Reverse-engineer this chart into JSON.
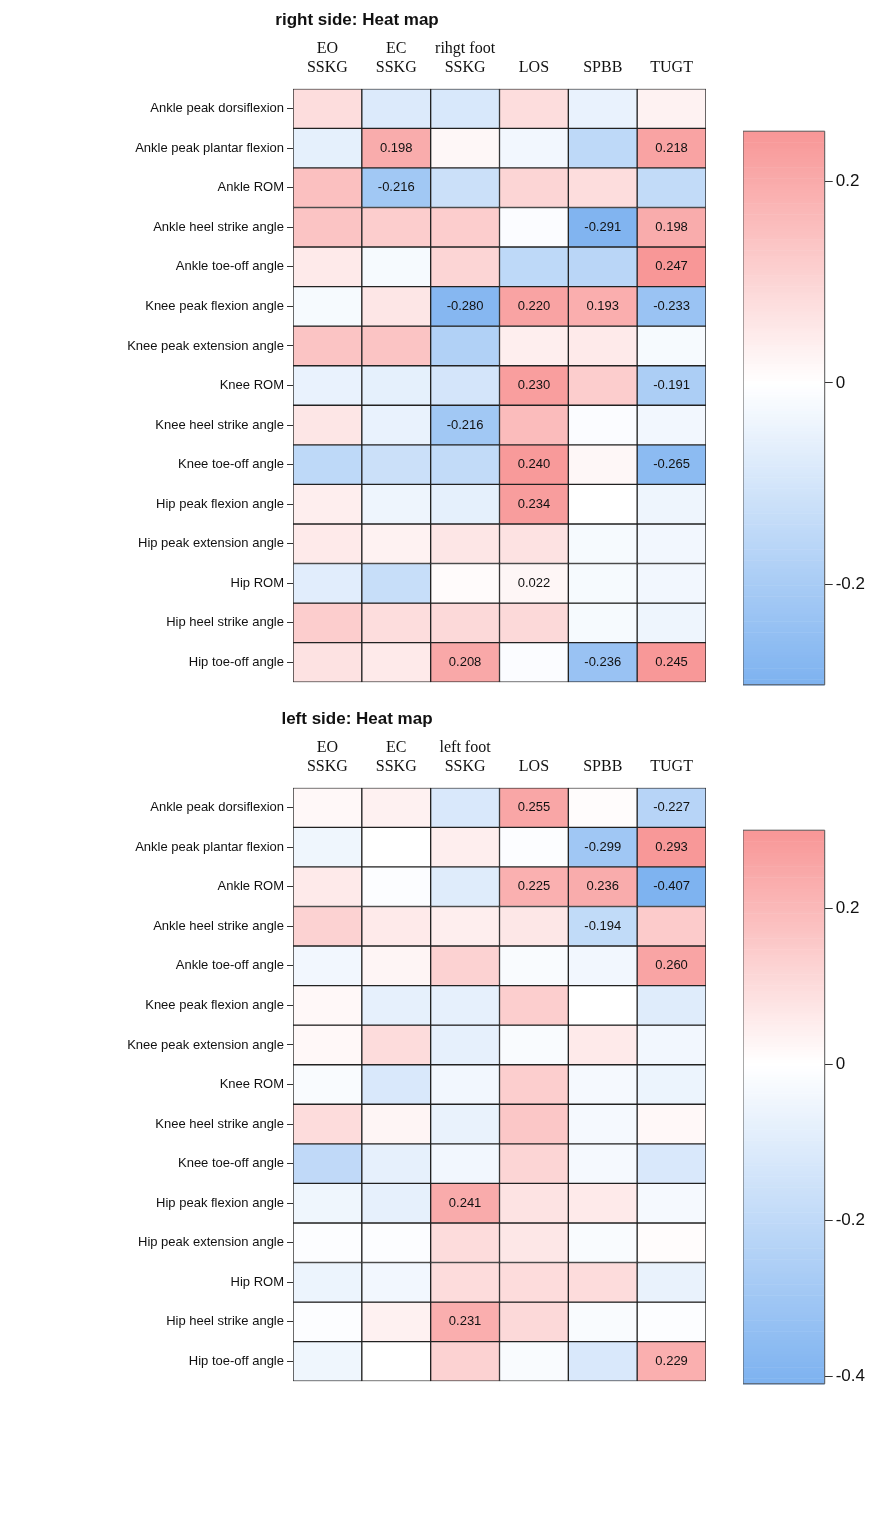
{
  "chart_data": [
    {
      "type": "heatmap",
      "title": "right side: Heat map",
      "categories": [
        [
          "EO",
          "SSKG"
        ],
        [
          "EC",
          "SSKG"
        ],
        [
          "rihgt foot",
          "SSKG"
        ],
        [
          "LOS"
        ],
        [
          "SPBB"
        ],
        [
          "TUGT"
        ]
      ],
      "y_categories": [
        "Ankle peak dorsiflexion",
        "Ankle peak plantar flexion",
        "Ankle ROM",
        "Ankle heel strike angle",
        "Ankle toe-off angle",
        "Knee peak flexion angle",
        "Knee peak extension angle",
        "Knee ROM",
        "Knee heel strike angle",
        "Knee toe-off angle",
        "Hip peak flexion angle",
        "Hip peak extension angle",
        "Hip ROM",
        "Hip heel strike angle",
        "Hip toe-off angle"
      ],
      "cells": [
        [
          0.08,
          -0.08,
          -0.09,
          0.08,
          -0.05,
          0.03
        ],
        [
          -0.06,
          0.198,
          0.02,
          -0.03,
          -0.15,
          0.218
        ],
        [
          0.15,
          -0.216,
          -0.12,
          0.1,
          0.08,
          -0.14
        ],
        [
          0.14,
          0.12,
          0.12,
          -0.01,
          -0.291,
          0.198
        ],
        [
          0.05,
          -0.02,
          0.1,
          -0.15,
          -0.16,
          0.247
        ],
        [
          -0.02,
          0.06,
          -0.28,
          0.22,
          0.193,
          -0.233
        ],
        [
          0.14,
          0.14,
          -0.18,
          0.04,
          0.05,
          -0.02
        ],
        [
          -0.05,
          -0.06,
          -0.1,
          0.23,
          0.12,
          -0.191
        ],
        [
          0.06,
          -0.05,
          -0.216,
          0.16,
          -0.01,
          -0.03
        ],
        [
          -0.15,
          -0.12,
          -0.14,
          0.24,
          0.02,
          -0.265
        ],
        [
          0.04,
          -0.04,
          -0.06,
          0.234,
          0,
          -0.04
        ],
        [
          0.05,
          0.03,
          0.06,
          0.07,
          -0.02,
          -0.03
        ],
        [
          -0.07,
          -0.13,
          0.01,
          0.022,
          -0.02,
          -0.03
        ],
        [
          0.12,
          0.08,
          0.09,
          0.09,
          -0.02,
          -0.04
        ],
        [
          0.07,
          0.05,
          0.208,
          -0.01,
          -0.236,
          0.245
        ]
      ],
      "cell_labels": [
        [
          null,
          null,
          null,
          null,
          null,
          null
        ],
        [
          null,
          "0.198",
          null,
          null,
          null,
          "0.218"
        ],
        [
          null,
          "-0.216",
          null,
          null,
          null,
          null
        ],
        [
          null,
          null,
          null,
          null,
          "-0.291",
          "0.198"
        ],
        [
          null,
          null,
          null,
          null,
          null,
          "0.247"
        ],
        [
          null,
          null,
          "-0.280",
          "0.220",
          "0.193",
          "-0.233"
        ],
        [
          null,
          null,
          null,
          null,
          null,
          null
        ],
        [
          null,
          null,
          null,
          "0.230",
          null,
          "-0.191"
        ],
        [
          null,
          null,
          "-0.216",
          null,
          null,
          null
        ],
        [
          null,
          null,
          null,
          "0.240",
          null,
          "-0.265"
        ],
        [
          null,
          null,
          null,
          "0.234",
          null,
          null
        ],
        [
          null,
          null,
          null,
          null,
          null,
          null
        ],
        [
          null,
          null,
          null,
          "0.022",
          null,
          null
        ],
        [
          null,
          null,
          null,
          null,
          null,
          null
        ],
        [
          null,
          null,
          "0.208",
          null,
          "-0.236",
          "0.245"
        ]
      ],
      "clim": [
        -0.3,
        0.25
      ],
      "cticks": [
        -0.2,
        0,
        0.2
      ]
    },
    {
      "type": "heatmap",
      "title": "left side: Heat map",
      "categories": [
        [
          "EO",
          "SSKG"
        ],
        [
          "EC",
          "SSKG"
        ],
        [
          "left foot",
          "SSKG"
        ],
        [
          "LOS"
        ],
        [
          "SPBB"
        ],
        [
          "TUGT"
        ]
      ],
      "y_categories": [
        "Ankle peak dorsiflexion",
        "Ankle peak plantar flexion",
        "Ankle ROM",
        "Ankle heel strike angle",
        "Ankle toe-off angle",
        "Knee peak flexion angle",
        "Knee peak extension angle",
        "Knee ROM",
        "Knee heel strike angle",
        "Knee toe-off angle",
        "Hip peak flexion angle",
        "Hip peak extension angle",
        "Hip ROM",
        "Hip heel strike angle",
        "Hip toe-off angle"
      ],
      "cells": [
        [
          0.02,
          0.04,
          -0.12,
          0.255,
          0.01,
          -0.227
        ],
        [
          -0.05,
          0,
          0.05,
          -0.01,
          -0.299,
          0.293
        ],
        [
          0.06,
          -0.01,
          -0.1,
          0.225,
          0.236,
          -0.407
        ],
        [
          0.13,
          0.06,
          0.05,
          0.07,
          -0.194,
          0.15
        ],
        [
          -0.04,
          0.03,
          0.13,
          -0.02,
          -0.04,
          0.26
        ],
        [
          0.02,
          -0.08,
          -0.08,
          0.14,
          0,
          -0.1
        ],
        [
          0.02,
          0.1,
          -0.08,
          -0.02,
          0.06,
          -0.04
        ],
        [
          -0.02,
          -0.12,
          -0.04,
          0.14,
          -0.03,
          -0.06
        ],
        [
          0.1,
          0.03,
          -0.07,
          0.16,
          -0.03,
          0.02
        ],
        [
          -0.2,
          -0.08,
          -0.04,
          0.12,
          -0.03,
          -0.12
        ],
        [
          -0.05,
          -0.08,
          0.241,
          0.08,
          0.06,
          -0.03
        ],
        [
          -0.01,
          -0.01,
          0.1,
          0.07,
          -0.02,
          0.01
        ],
        [
          -0.06,
          -0.04,
          0.1,
          0.1,
          0.1,
          -0.07
        ],
        [
          -0.01,
          0.04,
          0.231,
          0.11,
          -0.02,
          -0.01
        ],
        [
          -0.05,
          0,
          0.13,
          -0.02,
          -0.12,
          0.229
        ]
      ],
      "cell_labels": [
        [
          null,
          null,
          null,
          "0.255",
          null,
          "-0.227"
        ],
        [
          null,
          null,
          null,
          null,
          "-0.299",
          "0.293"
        ],
        [
          null,
          null,
          null,
          "0.225",
          "0.236",
          "-0.407"
        ],
        [
          null,
          null,
          null,
          null,
          "-0.194",
          null
        ],
        [
          null,
          null,
          null,
          null,
          null,
          "0.260"
        ],
        [
          null,
          null,
          null,
          null,
          null,
          null
        ],
        [
          null,
          null,
          null,
          null,
          null,
          null
        ],
        [
          null,
          null,
          null,
          null,
          null,
          null
        ],
        [
          null,
          null,
          null,
          null,
          null,
          null
        ],
        [
          null,
          null,
          null,
          null,
          null,
          null
        ],
        [
          null,
          null,
          "0.241",
          null,
          null,
          null
        ],
        [
          null,
          null,
          null,
          null,
          null,
          null
        ],
        [
          null,
          null,
          null,
          null,
          null,
          null
        ],
        [
          null,
          null,
          "0.231",
          null,
          null,
          null
        ],
        [
          null,
          null,
          null,
          null,
          null,
          "0.229"
        ]
      ],
      "clim": [
        -0.41,
        0.3
      ],
      "cticks": [
        -0.4,
        -0.2,
        0,
        0.2
      ]
    }
  ]
}
